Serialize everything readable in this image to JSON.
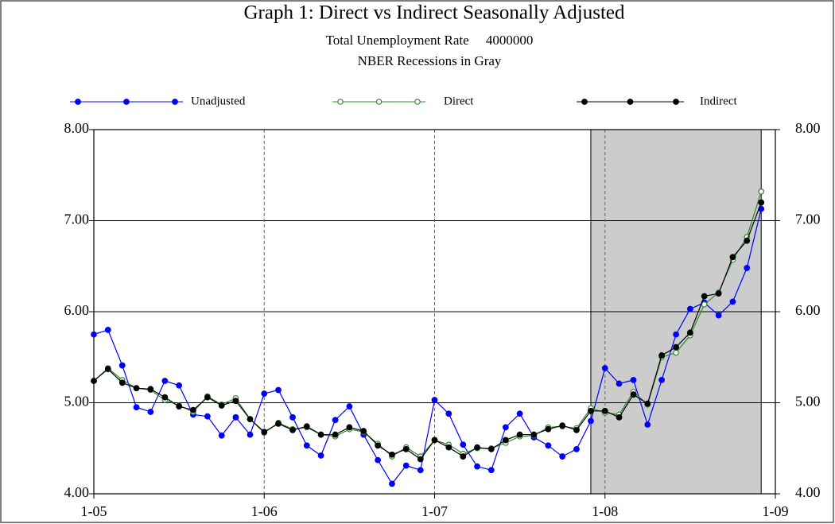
{
  "chart_data": {
    "type": "line",
    "title": "Graph 1: Direct vs Indirect Seasonally Adjusted",
    "subtitle": "Total Unemployment Rate     4000000",
    "note": "NBER Recessions in Gray",
    "x": [
      2005,
      2005.083,
      2005.167,
      2005.25,
      2005.333,
      2005.417,
      2005.5,
      2005.583,
      2005.667,
      2005.75,
      2005.833,
      2005.917,
      2006,
      2006.083,
      2006.167,
      2006.25,
      2006.333,
      2006.417,
      2006.5,
      2006.583,
      2006.667,
      2006.75,
      2006.833,
      2006.917,
      2007,
      2007.083,
      2007.167,
      2007.25,
      2007.333,
      2007.417,
      2007.5,
      2007.583,
      2007.667,
      2007.75,
      2007.833,
      2007.917,
      2008,
      2008.083,
      2008.167,
      2008.25,
      2008.333,
      2008.417,
      2008.5,
      2008.583,
      2008.667,
      2008.75,
      2008.833,
      2008.917
    ],
    "series": [
      {
        "name": "Unadjusted",
        "color": "#0000ff",
        "marker": "filled",
        "values": [
          5.75,
          5.8,
          5.41,
          4.95,
          4.9,
          5.24,
          5.19,
          4.87,
          4.85,
          4.64,
          4.84,
          4.65,
          5.1,
          5.14,
          4.84,
          4.53,
          4.42,
          4.81,
          4.96,
          4.65,
          4.37,
          4.11,
          4.31,
          4.26,
          5.03,
          4.88,
          4.54,
          4.3,
          4.26,
          4.73,
          4.88,
          4.62,
          4.53,
          4.41,
          4.49,
          4.8,
          5.38,
          5.21,
          5.25,
          4.76,
          5.25,
          5.75,
          6.03,
          6.1,
          5.96,
          6.11,
          6.48,
          7.13
        ]
      },
      {
        "name": "Direct",
        "color": "#2e8b2e",
        "marker": "hollow",
        "values": [
          5.24,
          5.38,
          5.25,
          5.16,
          5.14,
          5.03,
          4.97,
          4.9,
          5.07,
          4.98,
          5.05,
          4.82,
          4.67,
          4.78,
          4.71,
          4.73,
          4.65,
          4.63,
          4.71,
          4.68,
          4.55,
          4.41,
          4.51,
          4.41,
          4.59,
          4.54,
          4.44,
          4.5,
          4.5,
          4.56,
          4.63,
          4.64,
          4.73,
          4.74,
          4.72,
          4.94,
          4.89,
          4.87,
          5.12,
          4.98,
          5.5,
          5.55,
          5.74,
          6.08,
          6.21,
          6.57,
          6.82,
          7.32
        ]
      },
      {
        "name": "Indirect",
        "color": "#000000",
        "marker": "filled",
        "values": [
          5.24,
          5.37,
          5.22,
          5.16,
          5.15,
          5.06,
          4.96,
          4.92,
          5.06,
          4.97,
          5.02,
          4.82,
          4.68,
          4.77,
          4.7,
          4.74,
          4.65,
          4.65,
          4.73,
          4.69,
          4.53,
          4.43,
          4.49,
          4.38,
          4.59,
          4.51,
          4.41,
          4.51,
          4.49,
          4.59,
          4.65,
          4.65,
          4.71,
          4.75,
          4.7,
          4.91,
          4.91,
          4.84,
          5.09,
          4.99,
          5.52,
          5.61,
          5.77,
          6.17,
          6.2,
          6.6,
          6.78,
          7.2
        ]
      }
    ],
    "recession": [
      2007.917,
      2008.917
    ],
    "xlim": [
      2005,
      2009
    ],
    "xticks": [
      {
        "value": 2005,
        "label": "1-05"
      },
      {
        "value": 2006,
        "label": "1-06"
      },
      {
        "value": 2007,
        "label": "1-07"
      },
      {
        "value": 2008,
        "label": "1-08"
      },
      {
        "value": 2009,
        "label": "1-09"
      }
    ],
    "ylim": [
      4,
      8
    ],
    "yticks": [
      {
        "value": 4,
        "label": "4.00"
      },
      {
        "value": 5,
        "label": "5.00"
      },
      {
        "value": 6,
        "label": "6.00"
      },
      {
        "value": 7,
        "label": "7.00"
      },
      {
        "value": 8,
        "label": "8.00"
      }
    ],
    "grid": true
  }
}
